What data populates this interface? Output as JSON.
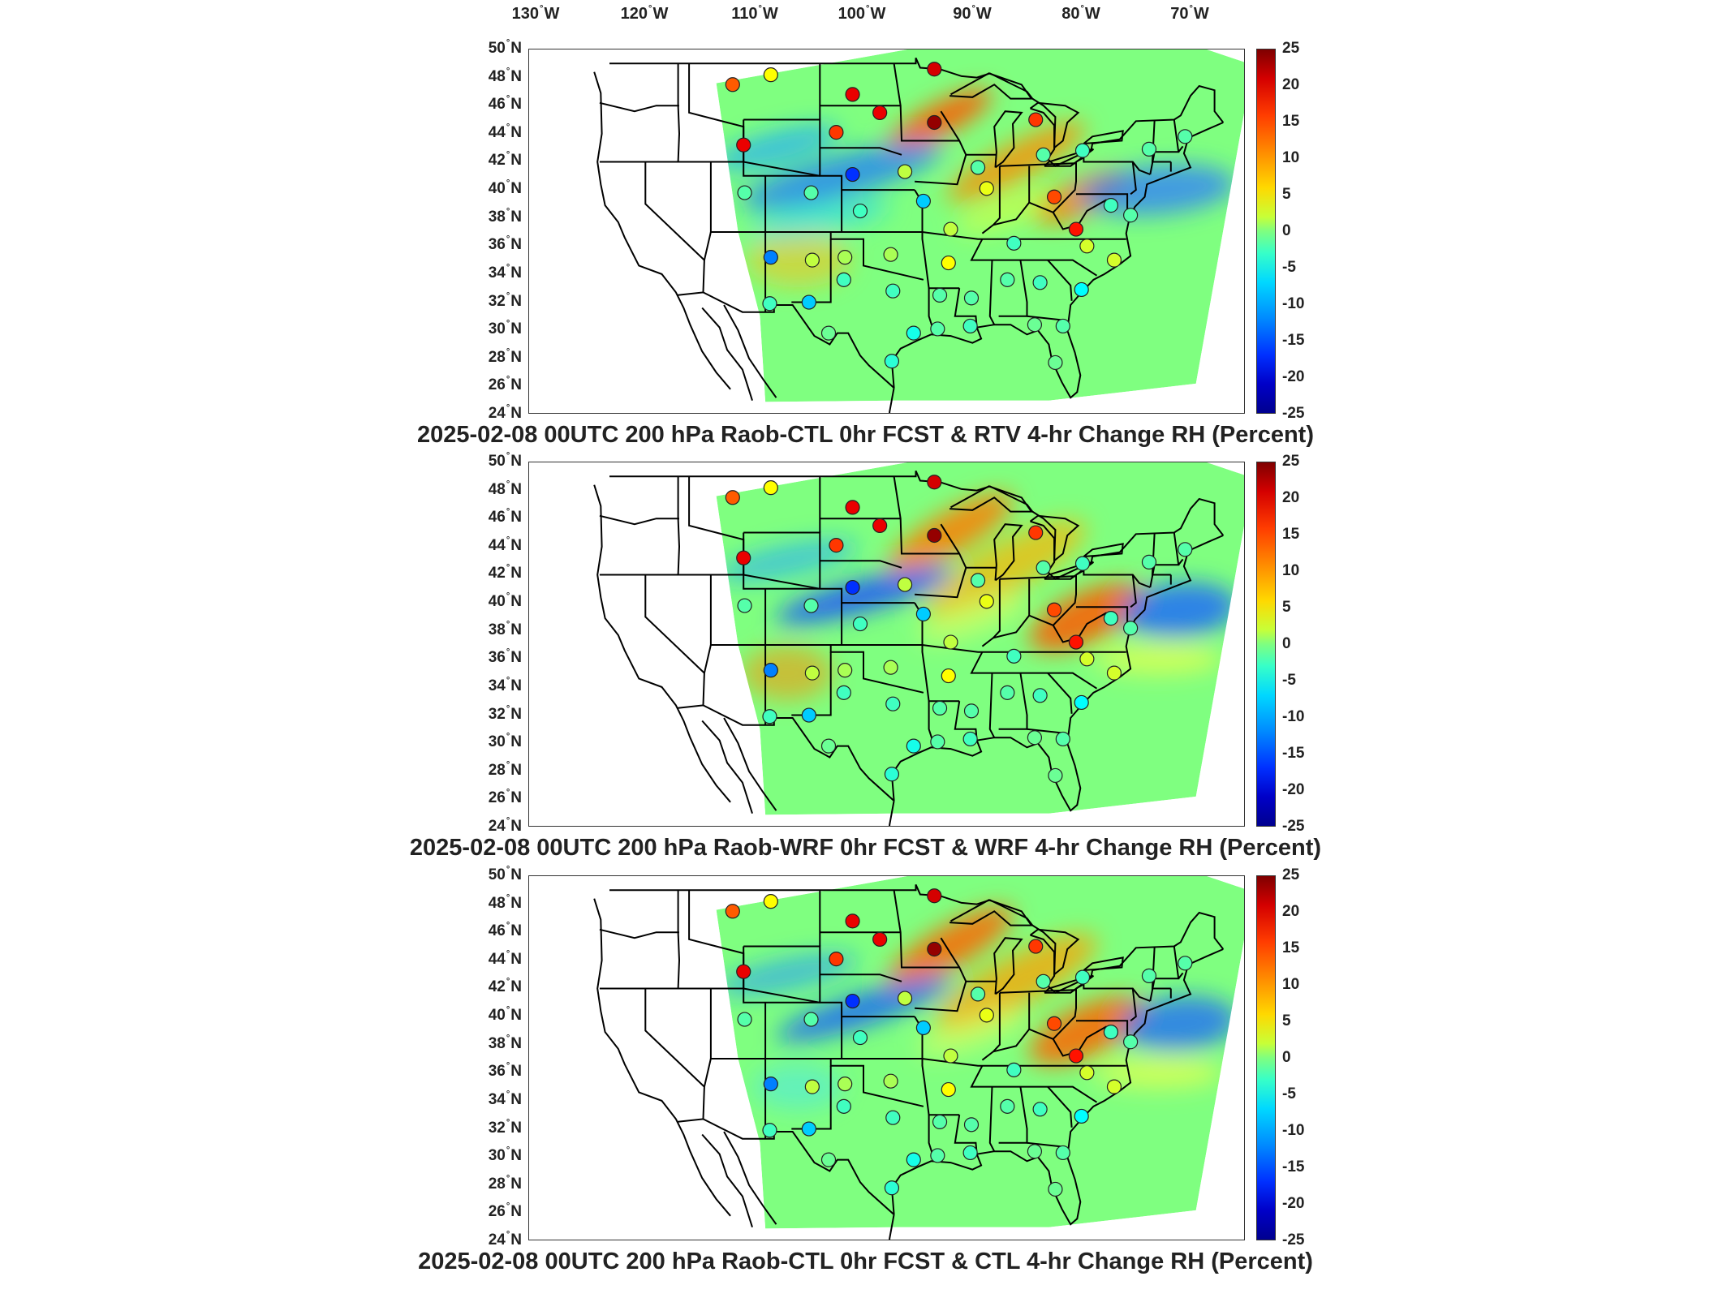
{
  "top_lon_labels": [
    "130° W",
    "120° W",
    "110° W",
    "100° W",
    "90° W",
    "80° W",
    "70° W"
  ],
  "lat_labels": [
    "50° N",
    "48° N",
    "46° N",
    "44° N",
    "42° N",
    "40° N",
    "38° N",
    "36° N",
    "34° N",
    "32° N",
    "30° N",
    "28° N",
    "26° N",
    "24° N"
  ],
  "colorbar_ticks": [
    "25",
    "20",
    "15",
    "10",
    "5",
    "0",
    "-5",
    "-10",
    "-15",
    "-20",
    "-25"
  ],
  "colors": {
    "colormap": [
      "#00008f",
      "#0000ff",
      "#0080ff",
      "#00ffff",
      "#80ff80",
      "#ffff00",
      "#ff8000",
      "#ff0000",
      "#800000"
    ],
    "border": "#000000"
  },
  "panels": [
    {
      "title": "2025-02-08 00UTC 200 hPa Raob-CTL 0hr FCST & RTV 4-hr Change RH (Percent)"
    },
    {
      "title": "2025-02-08 00UTC 200 hPa Raob-WRF 0hr FCST & WRF 4-hr Change RH (Percent)"
    },
    {
      "title": "2025-02-08 00UTC 200 hPa Raob-CTL 0hr FCST & CTL 4-hr Change RH (Percent)"
    }
  ],
  "stations": [
    {
      "lon": -112.0,
      "lat": 47.5,
      "v": 14
    },
    {
      "lon": -108.5,
      "lat": 48.2,
      "v": 6
    },
    {
      "lon": -101.0,
      "lat": 46.8,
      "v": 20
    },
    {
      "lon": -98.5,
      "lat": 45.5,
      "v": 20
    },
    {
      "lon": -93.5,
      "lat": 48.6,
      "v": 21
    },
    {
      "lon": -102.5,
      "lat": 44.1,
      "v": 16
    },
    {
      "lon": -111.0,
      "lat": 43.2,
      "v": 20
    },
    {
      "lon": -93.5,
      "lat": 44.8,
      "v": 24
    },
    {
      "lon": -84.2,
      "lat": 45.0,
      "v": 16
    },
    {
      "lon": -101.0,
      "lat": 41.1,
      "v": -16
    },
    {
      "lon": -96.2,
      "lat": 41.3,
      "v": 3
    },
    {
      "lon": -89.5,
      "lat": 41.6,
      "v": -2
    },
    {
      "lon": -88.7,
      "lat": 40.1,
      "v": 5
    },
    {
      "lon": -83.5,
      "lat": 42.5,
      "v": -2
    },
    {
      "lon": -79.9,
      "lat": 42.8,
      "v": -3
    },
    {
      "lon": -73.8,
      "lat": 42.9,
      "v": -2
    },
    {
      "lon": -70.5,
      "lat": 43.8,
      "v": -2
    },
    {
      "lon": -82.5,
      "lat": 39.5,
      "v": 15
    },
    {
      "lon": -77.3,
      "lat": 38.9,
      "v": -3
    },
    {
      "lon": -75.5,
      "lat": 38.2,
      "v": -2
    },
    {
      "lon": -80.5,
      "lat": 37.2,
      "v": 18
    },
    {
      "lon": -79.5,
      "lat": 36.0,
      "v": 4
    },
    {
      "lon": -110.9,
      "lat": 39.8,
      "v": -2
    },
    {
      "lon": -104.8,
      "lat": 39.8,
      "v": -2
    },
    {
      "lon": -100.3,
      "lat": 38.5,
      "v": -3
    },
    {
      "lon": -94.5,
      "lat": 39.2,
      "v": -8
    },
    {
      "lon": -92.0,
      "lat": 37.2,
      "v": 3
    },
    {
      "lon": -86.2,
      "lat": 36.2,
      "v": -3
    },
    {
      "lon": -108.5,
      "lat": 35.2,
      "v": -11
    },
    {
      "lon": -104.7,
      "lat": 35.0,
      "v": 3
    },
    {
      "lon": -101.7,
      "lat": 35.2,
      "v": 2
    },
    {
      "lon": -97.5,
      "lat": 35.4,
      "v": 2
    },
    {
      "lon": -92.2,
      "lat": 34.8,
      "v": 6
    },
    {
      "lon": -86.8,
      "lat": 33.6,
      "v": -2
    },
    {
      "lon": -83.8,
      "lat": 33.4,
      "v": -3
    },
    {
      "lon": -80.0,
      "lat": 32.9,
      "v": -6
    },
    {
      "lon": -77.0,
      "lat": 35.0,
      "v": 4
    },
    {
      "lon": -105.0,
      "lat": 32.0,
      "v": -8
    },
    {
      "lon": -101.8,
      "lat": 33.6,
      "v": -3
    },
    {
      "lon": -97.3,
      "lat": 32.8,
      "v": -3
    },
    {
      "lon": -93.0,
      "lat": 32.5,
      "v": -2
    },
    {
      "lon": -90.1,
      "lat": 32.3,
      "v": -2
    },
    {
      "lon": -108.6,
      "lat": 31.9,
      "v": -3
    },
    {
      "lon": -103.2,
      "lat": 29.8,
      "v": -1
    },
    {
      "lon": -95.4,
      "lat": 29.8,
      "v": -5
    },
    {
      "lon": -93.2,
      "lat": 30.1,
      "v": -2
    },
    {
      "lon": -90.2,
      "lat": 30.3,
      "v": -3
    },
    {
      "lon": -97.4,
      "lat": 27.8,
      "v": -4
    },
    {
      "lon": -84.3,
      "lat": 30.4,
      "v": -1
    },
    {
      "lon": -81.7,
      "lat": 30.3,
      "v": -2
    },
    {
      "lon": -82.4,
      "lat": 27.7,
      "v": -1
    }
  ]
}
